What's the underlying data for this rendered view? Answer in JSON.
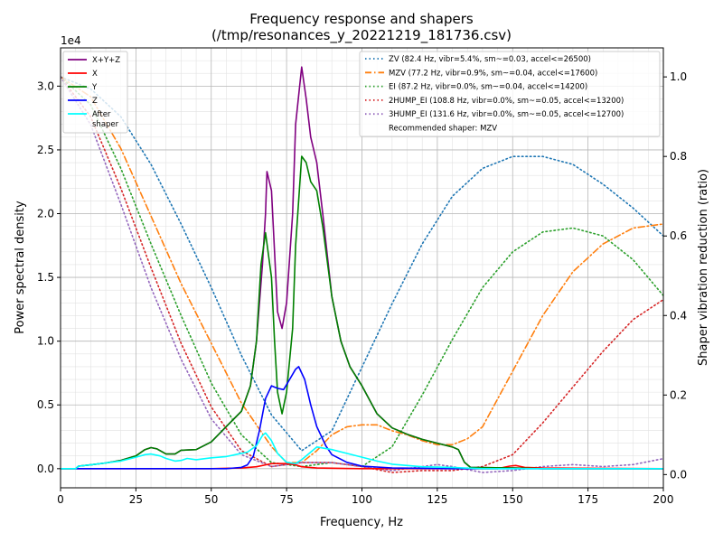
{
  "chart_data": {
    "type": "line",
    "title": "Frequency response and shapers",
    "subtitle": "(/tmp/resonances_y_20221219_181736.csv)",
    "xlabel": "Frequency, Hz",
    "ylabel": "Power spectral density",
    "y2label": "Shaper vibration reduction (ratio)",
    "y_multiplier_label": "1e4",
    "xlim": [
      0,
      200
    ],
    "ylim": [
      -1500,
      33000
    ],
    "y2lim": [
      -0.0333,
      1.073
    ],
    "grid": true,
    "x_ticks": [
      0,
      25,
      50,
      75,
      100,
      125,
      150,
      175,
      200
    ],
    "x_tick_labels": [
      "0",
      "25",
      "50",
      "75",
      "100",
      "125",
      "150",
      "175",
      "200"
    ],
    "y_ticks": [
      0,
      5000,
      10000,
      15000,
      20000,
      25000,
      30000
    ],
    "y_tick_labels": [
      "0.0",
      "0.5",
      "1.0",
      "1.5",
      "2.0",
      "2.5",
      "3.0"
    ],
    "y2_ticks": [
      0,
      0.2,
      0.4,
      0.6,
      0.8,
      1.0
    ],
    "y2_tick_labels": [
      "0.0",
      "0.2",
      "0.4",
      "0.6",
      "0.8",
      "1.0"
    ],
    "legend_left_position": "top-left",
    "legend_right_position": "top-right",
    "recommendation": "Recommended shaper: MZV",
    "psd_series": [
      {
        "name": "X+Y+Z",
        "color": "#800080",
        "style": "solid",
        "points": [
          [
            0,
            0
          ],
          [
            5,
            0
          ],
          [
            6,
            200
          ],
          [
            10,
            300
          ],
          [
            15,
            450
          ],
          [
            20,
            650
          ],
          [
            25,
            1000
          ],
          [
            28,
            1500
          ],
          [
            30,
            1650
          ],
          [
            32,
            1550
          ],
          [
            35,
            1150
          ],
          [
            38,
            1150
          ],
          [
            40,
            1450
          ],
          [
            45,
            1500
          ],
          [
            50,
            2100
          ],
          [
            55,
            3300
          ],
          [
            60,
            4500
          ],
          [
            63,
            6500
          ],
          [
            65,
            10000
          ],
          [
            67,
            16000
          ],
          [
            68,
            20000
          ],
          [
            68.5,
            23300
          ],
          [
            70,
            21800
          ],
          [
            71,
            17000
          ],
          [
            72,
            12300
          ],
          [
            73.5,
            11000
          ],
          [
            75,
            13000
          ],
          [
            77,
            20000
          ],
          [
            78,
            27000
          ],
          [
            80,
            31500
          ],
          [
            81.5,
            29000
          ],
          [
            83,
            26000
          ],
          [
            85,
            24000
          ],
          [
            87,
            20000
          ],
          [
            90,
            13500
          ],
          [
            93,
            10000
          ],
          [
            96,
            8000
          ],
          [
            100,
            6500
          ],
          [
            105,
            4300
          ],
          [
            110,
            3200
          ],
          [
            115,
            2700
          ],
          [
            120,
            2300
          ],
          [
            125,
            2000
          ],
          [
            130,
            1700
          ],
          [
            132,
            1500
          ],
          [
            134,
            500
          ],
          [
            136,
            100
          ],
          [
            150,
            50
          ],
          [
            160,
            0
          ],
          [
            200,
            0
          ]
        ]
      },
      {
        "name": "X",
        "color": "#ff0000",
        "style": "solid",
        "points": [
          [
            0,
            0
          ],
          [
            50,
            0
          ],
          [
            60,
            50
          ],
          [
            65,
            150
          ],
          [
            68,
            300
          ],
          [
            70,
            400
          ],
          [
            75,
            400
          ],
          [
            78,
            300
          ],
          [
            80,
            150
          ],
          [
            85,
            50
          ],
          [
            100,
            0
          ],
          [
            130,
            0
          ],
          [
            145,
            0
          ],
          [
            149,
            200
          ],
          [
            151,
            250
          ],
          [
            154,
            100
          ],
          [
            160,
            50
          ],
          [
            200,
            0
          ]
        ]
      },
      {
        "name": "Y",
        "color": "#008000",
        "style": "solid",
        "points": [
          [
            0,
            0
          ],
          [
            5,
            0
          ],
          [
            6,
            200
          ],
          [
            10,
            300
          ],
          [
            15,
            450
          ],
          [
            20,
            650
          ],
          [
            25,
            1000
          ],
          [
            28,
            1500
          ],
          [
            30,
            1650
          ],
          [
            32,
            1550
          ],
          [
            35,
            1150
          ],
          [
            38,
            1150
          ],
          [
            40,
            1450
          ],
          [
            45,
            1500
          ],
          [
            50,
            2100
          ],
          [
            55,
            3300
          ],
          [
            60,
            4500
          ],
          [
            63,
            6500
          ],
          [
            65,
            10000
          ],
          [
            66.5,
            16000
          ],
          [
            68,
            18500
          ],
          [
            70,
            15000
          ],
          [
            71,
            10000
          ],
          [
            72,
            6000
          ],
          [
            73.5,
            4300
          ],
          [
            75,
            6000
          ],
          [
            77,
            11000
          ],
          [
            78,
            17500
          ],
          [
            80,
            24500
          ],
          [
            81.5,
            24000
          ],
          [
            83,
            22500
          ],
          [
            85,
            21800
          ],
          [
            87,
            19000
          ],
          [
            90,
            13500
          ],
          [
            93,
            10000
          ],
          [
            96,
            8000
          ],
          [
            100,
            6500
          ],
          [
            105,
            4300
          ],
          [
            110,
            3200
          ],
          [
            115,
            2700
          ],
          [
            120,
            2300
          ],
          [
            125,
            2000
          ],
          [
            130,
            1700
          ],
          [
            132,
            1500
          ],
          [
            134,
            500
          ],
          [
            136,
            100
          ],
          [
            150,
            50
          ],
          [
            160,
            0
          ],
          [
            200,
            0
          ]
        ]
      },
      {
        "name": "Z",
        "color": "#0000ff",
        "style": "solid",
        "points": [
          [
            0,
            0
          ],
          [
            55,
            0
          ],
          [
            60,
            100
          ],
          [
            62,
            300
          ],
          [
            64,
            1000
          ],
          [
            66,
            3000
          ],
          [
            68,
            5500
          ],
          [
            70,
            6500
          ],
          [
            72,
            6300
          ],
          [
            74,
            6200
          ],
          [
            76,
            7000
          ],
          [
            78,
            7800
          ],
          [
            79,
            8000
          ],
          [
            81,
            7000
          ],
          [
            83,
            5000
          ],
          [
            85,
            3300
          ],
          [
            88,
            1800
          ],
          [
            90,
            1100
          ],
          [
            95,
            500
          ],
          [
            100,
            200
          ],
          [
            110,
            50
          ],
          [
            130,
            0
          ],
          [
            200,
            0
          ]
        ]
      },
      {
        "name": "After\nshaper",
        "color": "#00ffff",
        "style": "solid",
        "points": [
          [
            0,
            0
          ],
          [
            5,
            0
          ],
          [
            6,
            200
          ],
          [
            10,
            300
          ],
          [
            15,
            450
          ],
          [
            20,
            600
          ],
          [
            25,
            900
          ],
          [
            28,
            1100
          ],
          [
            30,
            1150
          ],
          [
            33,
            1000
          ],
          [
            35,
            800
          ],
          [
            38,
            600
          ],
          [
            40,
            650
          ],
          [
            42,
            800
          ],
          [
            45,
            700
          ],
          [
            50,
            850
          ],
          [
            55,
            950
          ],
          [
            58,
            1100
          ],
          [
            62,
            1300
          ],
          [
            65,
            1800
          ],
          [
            67,
            2600
          ],
          [
            68,
            2800
          ],
          [
            70,
            2200
          ],
          [
            72,
            1200
          ],
          [
            75,
            500
          ],
          [
            78,
            400
          ],
          [
            80,
            700
          ],
          [
            83,
            1300
          ],
          [
            85,
            1700
          ],
          [
            90,
            1500
          ],
          [
            95,
            1200
          ],
          [
            100,
            900
          ],
          [
            105,
            600
          ],
          [
            110,
            350
          ],
          [
            115,
            250
          ],
          [
            120,
            150
          ],
          [
            130,
            100
          ],
          [
            134,
            50
          ],
          [
            140,
            0
          ],
          [
            200,
            0
          ]
        ]
      }
    ],
    "shaper_series": [
      {
        "name": "ZV (82.4 Hz, vibr=5.4%, sm~=0.03, accel<=26500)",
        "color": "#1f77b4",
        "style": "dotted",
        "points": [
          [
            0,
            1.0
          ],
          [
            10,
            0.97
          ],
          [
            20,
            0.9
          ],
          [
            30,
            0.78
          ],
          [
            40,
            0.63
          ],
          [
            50,
            0.47
          ],
          [
            60,
            0.3
          ],
          [
            70,
            0.15
          ],
          [
            80,
            0.06
          ],
          [
            90,
            0.11
          ],
          [
            100,
            0.27
          ],
          [
            110,
            0.43
          ],
          [
            120,
            0.58
          ],
          [
            130,
            0.7
          ],
          [
            140,
            0.77
          ],
          [
            150,
            0.8
          ],
          [
            160,
            0.8
          ],
          [
            170,
            0.78
          ],
          [
            180,
            0.73
          ],
          [
            190,
            0.67
          ],
          [
            200,
            0.6
          ]
        ]
      },
      {
        "name": "MZV (77.2 Hz, vibr=0.9%, sm~=0.04, accel<=17600)",
        "color": "#ff7f0e",
        "style": "dashdot",
        "points": [
          [
            0,
            1.0
          ],
          [
            10,
            0.95
          ],
          [
            20,
            0.82
          ],
          [
            30,
            0.65
          ],
          [
            40,
            0.48
          ],
          [
            50,
            0.33
          ],
          [
            60,
            0.18
          ],
          [
            70,
            0.07
          ],
          [
            75,
            0.03
          ],
          [
            80,
            0.03
          ],
          [
            85,
            0.06
          ],
          [
            90,
            0.1
          ],
          [
            95,
            0.12
          ],
          [
            100,
            0.125
          ],
          [
            105,
            0.125
          ],
          [
            110,
            0.11
          ],
          [
            115,
            0.1
          ],
          [
            120,
            0.085
          ],
          [
            125,
            0.075
          ],
          [
            130,
            0.075
          ],
          [
            135,
            0.09
          ],
          [
            140,
            0.12
          ],
          [
            150,
            0.26
          ],
          [
            160,
            0.4
          ],
          [
            170,
            0.51
          ],
          [
            180,
            0.58
          ],
          [
            190,
            0.62
          ],
          [
            200,
            0.63
          ]
        ]
      },
      {
        "name": "EI (87.2 Hz, vibr=0.0%, sm~=0.04, accel<=14200)",
        "color": "#2ca02c",
        "style": "dotted",
        "points": [
          [
            0,
            1.0
          ],
          [
            10,
            0.93
          ],
          [
            20,
            0.77
          ],
          [
            30,
            0.58
          ],
          [
            40,
            0.4
          ],
          [
            50,
            0.23
          ],
          [
            60,
            0.1
          ],
          [
            70,
            0.03
          ],
          [
            80,
            0.02
          ],
          [
            90,
            0.03
          ],
          [
            100,
            0.02
          ],
          [
            110,
            0.07
          ],
          [
            120,
            0.2
          ],
          [
            130,
            0.34
          ],
          [
            140,
            0.47
          ],
          [
            150,
            0.56
          ],
          [
            160,
            0.61
          ],
          [
            170,
            0.62
          ],
          [
            180,
            0.6
          ],
          [
            190,
            0.54
          ],
          [
            200,
            0.45
          ]
        ]
      },
      {
        "name": "2HUMP_EI (108.8 Hz, vibr=0.0%, sm~=0.05, accel<=13200)",
        "color": "#d62728",
        "style": "dotted",
        "points": [
          [
            0,
            1.0
          ],
          [
            10,
            0.9
          ],
          [
            20,
            0.72
          ],
          [
            30,
            0.52
          ],
          [
            40,
            0.33
          ],
          [
            50,
            0.17
          ],
          [
            60,
            0.06
          ],
          [
            70,
            0.02
          ],
          [
            80,
            0.03
          ],
          [
            90,
            0.03
          ],
          [
            100,
            0.02
          ],
          [
            110,
            0.005
          ],
          [
            120,
            0.01
          ],
          [
            130,
            0.01
          ],
          [
            140,
            0.02
          ],
          [
            150,
            0.05
          ],
          [
            160,
            0.13
          ],
          [
            170,
            0.22
          ],
          [
            180,
            0.31
          ],
          [
            190,
            0.39
          ],
          [
            200,
            0.44
          ]
        ]
      },
      {
        "name": "3HUMP_EI (131.6 Hz, vibr=0.0%, sm~=0.05, accel<=12700)",
        "color": "#9467bd",
        "style": "dotted",
        "points": [
          [
            0,
            1.0
          ],
          [
            10,
            0.88
          ],
          [
            20,
            0.68
          ],
          [
            30,
            0.47
          ],
          [
            40,
            0.29
          ],
          [
            50,
            0.14
          ],
          [
            60,
            0.05
          ],
          [
            70,
            0.02
          ],
          [
            80,
            0.03
          ],
          [
            90,
            0.03
          ],
          [
            100,
            0.02
          ],
          [
            110,
            0.01
          ],
          [
            120,
            0.02
          ],
          [
            125,
            0.025
          ],
          [
            130,
            0.02
          ],
          [
            140,
            0.005
          ],
          [
            150,
            0.01
          ],
          [
            160,
            0.02
          ],
          [
            170,
            0.025
          ],
          [
            180,
            0.02
          ],
          [
            190,
            0.025
          ],
          [
            200,
            0.04
          ]
        ]
      }
    ]
  }
}
